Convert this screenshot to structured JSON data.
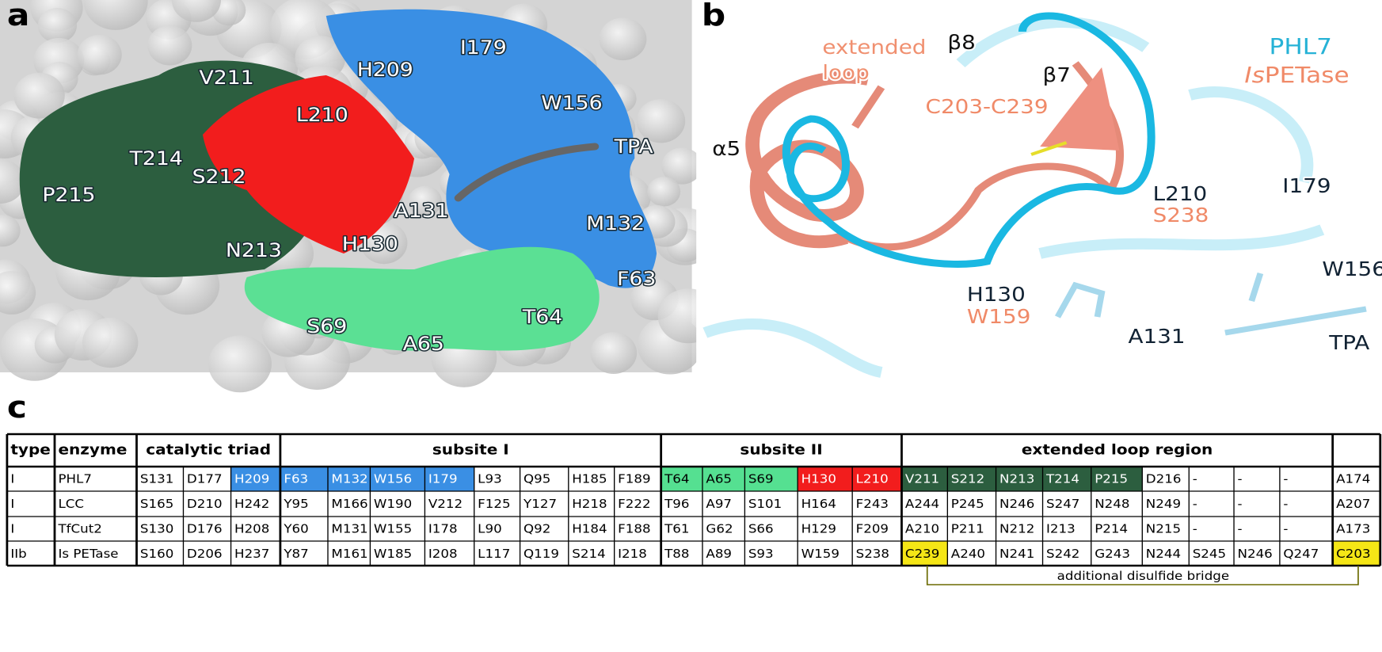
{
  "panels": {
    "a": {
      "label": "a",
      "residues": [
        "V211",
        "L210",
        "H209",
        "I179",
        "W156",
        "TPA",
        "T214",
        "S212",
        "P215",
        "A131",
        "M132",
        "N213",
        "H130",
        "F63",
        "S69",
        "T64",
        "A65"
      ]
    },
    "b": {
      "label": "b",
      "extended": "extended",
      "loop": "loop",
      "beta8": "β8",
      "beta7": "β7",
      "phl7": "PHL7",
      "is_italic": "Is",
      "petase": "PETase",
      "alpha5": "α5",
      "disulfide": "C203-C239",
      "l210": "L210",
      "s238": "S238",
      "i179": "I179",
      "h130": "H130",
      "w159": "W159",
      "w156": "W156",
      "a131": "A131",
      "tpa": "TPA"
    },
    "c": {
      "label": "c"
    }
  },
  "table": {
    "header": [
      "type",
      "enzyme",
      "catalytic triad",
      "subsite I",
      "subsite II",
      "extended loop region"
    ],
    "rows": [
      [
        "I",
        "PHL7",
        "S131",
        "D177",
        "H209",
        "F63",
        "M132",
        "W156",
        "I179",
        "L93",
        "Q95",
        "H185",
        "F189",
        "T64",
        "A65",
        "S69",
        "H130",
        "L210",
        "V211",
        "S212",
        "N213",
        "T214",
        "P215",
        "D216",
        "-",
        "-",
        "-",
        "A174"
      ],
      [
        "I",
        "LCC",
        "S165",
        "D210",
        "H242",
        "Y95",
        "M166",
        "W190",
        "V212",
        "F125",
        "Y127",
        "H218",
        "F222",
        "T96",
        "A97",
        "S101",
        "H164",
        "F243",
        "A244",
        "P245",
        "N246",
        "S247",
        "N248",
        "N249",
        "-",
        "-",
        "-",
        "A207"
      ],
      [
        "I",
        "TfCut2",
        "S130",
        "D176",
        "H208",
        "Y60",
        "M131",
        "W155",
        "I178",
        "L90",
        "Q92",
        "H184",
        "F188",
        "T61",
        "G62",
        "S66",
        "H129",
        "F209",
        "A210",
        "P211",
        "N212",
        "I213",
        "P214",
        "N215",
        "-",
        "-",
        "-",
        "A173"
      ],
      [
        "IIb",
        "Is PETase",
        "S160",
        "D206",
        "H237",
        "Y87",
        "M161",
        "W185",
        "I208",
        "L117",
        "Q119",
        "S214",
        "I218",
        "T88",
        "A89",
        "S93",
        "W159",
        "S238",
        "C239",
        "A240",
        "N241",
        "S242",
        "G243",
        "N244",
        "S245",
        "N246",
        "Q247",
        "C203"
      ]
    ],
    "note": "additional disulfide bridge"
  }
}
